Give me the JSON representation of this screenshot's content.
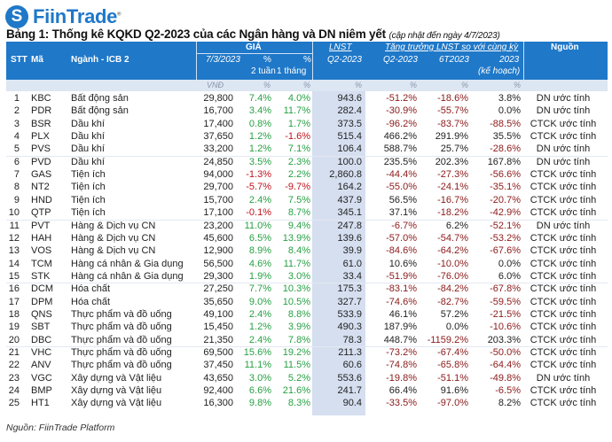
{
  "brand": {
    "name": "FiinTrade",
    "logo_icon": "fiintrade-s-logo",
    "color": "#1f78c8"
  },
  "title": "Bảng 1: Thống kê KQKD Q2-2023 của các Ngân hàng và DN niêm yết",
  "subtitle": "(cập nhật đến ngày 4/7/2023)",
  "header": {
    "stt": "STT",
    "ma": "Mã",
    "nganh": "Ngành - ICB 2",
    "gia": "GIÁ",
    "gia_date": "7/3/2023",
    "pct": "%",
    "two_weeks": "2 tuần",
    "one_month": "1 tháng",
    "lnst": "LNST",
    "lnst_q": "Q2-2023",
    "growth": "Tăng trưởng LNST so với cùng kỳ",
    "g_q2": "Q2-2023",
    "g_6t": "6T2023",
    "g_2023": "2023",
    "g_plan": "(kế hoạch)",
    "source": "Nguồn"
  },
  "units": {
    "price": "VNĐ",
    "w2": "%",
    "m1": "%",
    "lnst": "%",
    "g_q2": "%",
    "g_6t": "%",
    "g_2023": "%"
  },
  "colors": {
    "header": "#1f78c8",
    "positive_price": "#27a044",
    "negative_price": "#c0141c",
    "negative_growth": "#8b1a1a"
  },
  "rows": [
    [
      "1",
      "KBC",
      "Bất động sản",
      "29,800",
      "7.4%",
      "4.0%",
      "943.6",
      "-51.2%",
      "-18.6%",
      "3.8%",
      "DN ước tính"
    ],
    [
      "2",
      "PDR",
      "Bất động sản",
      "16,700",
      "3.4%",
      "11.7%",
      "282.4",
      "-30.9%",
      "-55.7%",
      "0.0%",
      "DN ước tính"
    ],
    [
      "3",
      "BSR",
      "Dầu khí",
      "17,400",
      "0.8%",
      "1.7%",
      "373.5",
      "-96.2%",
      "-83.7%",
      "-88.5%",
      "CTCK ước tính"
    ],
    [
      "4",
      "PLX",
      "Dầu khí",
      "37,650",
      "1.2%",
      "-1.6%",
      "515.4",
      "466.2%",
      "291.9%",
      "35.5%",
      "CTCK ước tính"
    ],
    [
      "5",
      "PVS",
      "Dầu khí",
      "33,200",
      "1.2%",
      "7.1%",
      "106.4",
      "588.7%",
      "25.7%",
      "-28.6%",
      "DN ước tính"
    ],
    [
      "6",
      "PVD",
      "Dầu khí",
      "24,850",
      "3.5%",
      "2.3%",
      "100.0",
      "235.5%",
      "202.3%",
      "167.8%",
      "DN ước tính"
    ],
    [
      "7",
      "GAS",
      "Tiện ích",
      "94,000",
      "-1.3%",
      "2.2%",
      "2,860.8",
      "-44.4%",
      "-27.3%",
      "-56.6%",
      "CTCK ước tính"
    ],
    [
      "8",
      "NT2",
      "Tiện ích",
      "29,700",
      "-5.7%",
      "-9.7%",
      "164.2",
      "-55.0%",
      "-24.1%",
      "-35.1%",
      "CTCK ước tính"
    ],
    [
      "9",
      "HND",
      "Tiện ích",
      "15,700",
      "2.4%",
      "7.5%",
      "437.9",
      "56.5%",
      "-16.7%",
      "-20.7%",
      "CTCK ước tính"
    ],
    [
      "10",
      "QTP",
      "Tiện ích",
      "17,100",
      "-0.1%",
      "8.7%",
      "345.1",
      "37.1%",
      "-18.2%",
      "-42.9%",
      "CTCK ước tính"
    ],
    [
      "11",
      "PVT",
      "Hàng & Dịch vụ CN",
      "23,200",
      "11.0%",
      "9.4%",
      "247.8",
      "-6.7%",
      "6.2%",
      "-52.1%",
      "DN ước tính"
    ],
    [
      "12",
      "HAH",
      "Hàng & Dịch vụ CN",
      "45,600",
      "6.5%",
      "13.9%",
      "139.6",
      "-57.0%",
      "-54.7%",
      "-53.2%",
      "CTCK ước tính"
    ],
    [
      "13",
      "VOS",
      "Hàng & Dịch vụ CN",
      "12,900",
      "8.9%",
      "8.4%",
      "39.9",
      "-84.6%",
      "-64.2%",
      "-67.6%",
      "CTCK ước tính"
    ],
    [
      "14",
      "TCM",
      "Hàng cá nhân & Gia dụng",
      "56,500",
      "4.6%",
      "11.7%",
      "61.0",
      "10.6%",
      "-10.0%",
      "0.0%",
      "CTCK ước tính"
    ],
    [
      "15",
      "STK",
      "Hàng cá nhân & Gia dụng",
      "29,300",
      "1.9%",
      "3.0%",
      "33.4",
      "-51.9%",
      "-76.0%",
      "6.0%",
      "CTCK ước tính"
    ],
    [
      "16",
      "DCM",
      "Hóa chất",
      "27,250",
      "7.7%",
      "10.3%",
      "175.3",
      "-83.1%",
      "-84.2%",
      "-67.8%",
      "CTCK ước tính"
    ],
    [
      "17",
      "DPM",
      "Hóa chất",
      "35,650",
      "9.0%",
      "10.5%",
      "327.7",
      "-74.6%",
      "-82.7%",
      "-59.5%",
      "CTCK ước tính"
    ],
    [
      "18",
      "QNS",
      "Thực phẩm và đồ uống",
      "49,100",
      "2.4%",
      "8.8%",
      "533.9",
      "46.1%",
      "57.2%",
      "-21.5%",
      "CTCK ước tính"
    ],
    [
      "19",
      "SBT",
      "Thực phẩm và đồ uống",
      "15,450",
      "1.2%",
      "3.9%",
      "490.3",
      "187.9%",
      "0.0%",
      "-10.6%",
      "CTCK ước tính"
    ],
    [
      "20",
      "DBC",
      "Thực phẩm và đồ uống",
      "21,350",
      "2.4%",
      "7.8%",
      "78.3",
      "448.7%",
      "-1159.2%",
      "203.3%",
      "CTCK ước tính"
    ],
    [
      "21",
      "VHC",
      "Thực phẩm và đồ uống",
      "69,500",
      "15.6%",
      "19.2%",
      "211.3",
      "-73.2%",
      "-67.4%",
      "-50.0%",
      "CTCK ước tính"
    ],
    [
      "22",
      "ANV",
      "Thực phẩm và đồ uống",
      "37,450",
      "11.1%",
      "11.5%",
      "60.6",
      "-74.8%",
      "-65.8%",
      "-64.4%",
      "CTCK ước tính"
    ],
    [
      "23",
      "VGC",
      "Xây dựng và Vật liệu",
      "43,650",
      "3.0%",
      "5.2%",
      "553.6",
      "-19.8%",
      "-51.1%",
      "-49.8%",
      "DN ước tính"
    ],
    [
      "24",
      "BMP",
      "Xây dựng và Vật liệu",
      "92,400",
      "6.6%",
      "21.6%",
      "241.7",
      "66.4%",
      "91.6%",
      "-6.5%",
      "CTCK ước tính"
    ],
    [
      "25",
      "HT1",
      "Xây dựng và Vật liệu",
      "16,300",
      "9.8%",
      "8.3%",
      "90.4",
      "-33.5%",
      "-97.0%",
      "8.2%",
      "CTCK ước tính"
    ]
  ],
  "footer": "Nguồn: FiinTrade Platform"
}
